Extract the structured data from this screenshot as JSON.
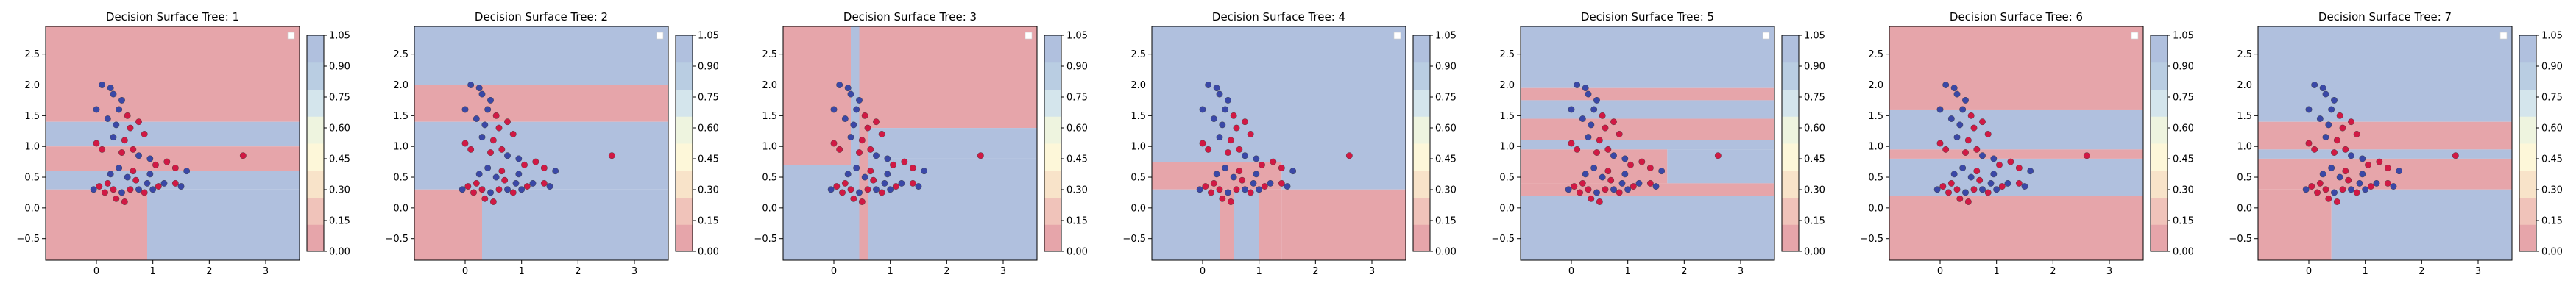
{
  "chart_data": {
    "type": "heatmap",
    "xlim": [
      -0.9,
      3.6
    ],
    "ylim": [
      -0.85,
      2.95
    ],
    "x_ticks": [
      "0",
      "1",
      "2",
      "3"
    ],
    "y_ticks": [
      "−0.5",
      "0.0",
      "0.5",
      "1.0",
      "1.5",
      "2.0",
      "2.5"
    ],
    "colorbar_ticks": [
      "0.00",
      "0.15",
      "0.30",
      "0.45",
      "0.60",
      "0.75",
      "0.90",
      "1.05"
    ],
    "colorbar_colors": [
      "#e6a5aa",
      "#f0c3ba",
      "#f8e3c9",
      "#fdf7d9",
      "#eef4df",
      "#d4e5ec",
      "#b9cde2",
      "#b0c0de"
    ],
    "colors": {
      "red": "#e6a5aa",
      "blue": "#b0c0de",
      "point_red": "#d11944",
      "point_blue": "#3a48a7"
    },
    "points": [
      [
        0.1,
        2.0,
        1
      ],
      [
        0.25,
        1.95,
        1
      ],
      [
        0.3,
        1.85,
        1
      ],
      [
        0.4,
        1.6,
        1
      ],
      [
        0.45,
        1.75,
        1
      ],
      [
        0.55,
        1.5,
        0
      ],
      [
        0.0,
        1.6,
        1
      ],
      [
        0.2,
        1.45,
        1
      ],
      [
        0.35,
        1.35,
        1
      ],
      [
        0.6,
        1.3,
        0
      ],
      [
        0.75,
        1.4,
        0
      ],
      [
        0.85,
        1.2,
        0
      ],
      [
        0.3,
        1.15,
        1
      ],
      [
        0.5,
        1.1,
        0
      ],
      [
        0.65,
        0.95,
        0
      ],
      [
        0.0,
        1.05,
        0
      ],
      [
        0.1,
        0.95,
        0
      ],
      [
        0.45,
        0.9,
        0
      ],
      [
        0.75,
        0.85,
        1
      ],
      [
        0.95,
        0.8,
        1
      ],
      [
        1.05,
        0.7,
        0
      ],
      [
        1.25,
        0.75,
        0
      ],
      [
        1.4,
        0.65,
        0
      ],
      [
        1.6,
        0.6,
        1
      ],
      [
        2.6,
        0.85,
        0
      ],
      [
        0.4,
        0.65,
        1
      ],
      [
        0.55,
        0.5,
        1
      ],
      [
        0.7,
        0.45,
        0
      ],
      [
        0.9,
        0.4,
        1
      ],
      [
        1.2,
        0.4,
        1
      ],
      [
        1.4,
        0.4,
        0
      ],
      [
        1.5,
        0.35,
        1
      ],
      [
        0.2,
        0.4,
        0
      ],
      [
        0.3,
        0.3,
        0
      ],
      [
        0.05,
        0.35,
        0
      ],
      [
        0.15,
        0.25,
        0
      ],
      [
        -0.05,
        0.3,
        1
      ],
      [
        0.35,
        0.15,
        0
      ],
      [
        0.45,
        0.25,
        1
      ],
      [
        0.6,
        0.3,
        0
      ],
      [
        0.75,
        0.3,
        1
      ],
      [
        0.85,
        0.25,
        0
      ],
      [
        1.0,
        0.3,
        1
      ],
      [
        1.1,
        0.35,
        0
      ],
      [
        0.5,
        0.1,
        0
      ],
      [
        0.25,
        0.55,
        1
      ],
      [
        0.65,
        0.6,
        0
      ],
      [
        0.95,
        0.55,
        1
      ]
    ],
    "subplots": [
      {
        "title": "Decision Surface Tree: 1",
        "regions": [
          {
            "x0": -0.9,
            "x1": 3.6,
            "y0": 1.4,
            "y1": 2.95,
            "color": "red"
          },
          {
            "x0": -0.9,
            "x1": 3.6,
            "y0": 1.0,
            "y1": 1.4,
            "color": "blue"
          },
          {
            "x0": -0.9,
            "x1": 3.6,
            "y0": 0.6,
            "y1": 1.0,
            "color": "red"
          },
          {
            "x0": -0.9,
            "x1": 3.6,
            "y0": 0.3,
            "y1": 0.6,
            "color": "blue"
          },
          {
            "x0": -0.9,
            "x1": 0.9,
            "y0": -0.85,
            "y1": 0.3,
            "color": "red"
          },
          {
            "x0": 0.9,
            "x1": 3.6,
            "y0": -0.85,
            "y1": 0.3,
            "color": "blue"
          }
        ]
      },
      {
        "title": "Decision Surface Tree: 2",
        "regions": [
          {
            "x0": -0.9,
            "x1": 3.6,
            "y0": 2.0,
            "y1": 2.95,
            "color": "blue"
          },
          {
            "x0": -0.9,
            "x1": 3.6,
            "y0": 1.4,
            "y1": 2.0,
            "color": "red"
          },
          {
            "x0": -0.9,
            "x1": 3.6,
            "y0": 0.3,
            "y1": 1.4,
            "color": "blue"
          },
          {
            "x0": -0.9,
            "x1": 0.3,
            "y0": -0.85,
            "y1": 0.3,
            "color": "red"
          },
          {
            "x0": 0.3,
            "x1": 3.6,
            "y0": -0.85,
            "y1": 0.3,
            "color": "blue"
          }
        ]
      },
      {
        "title": "Decision Surface Tree: 3",
        "regions": [
          {
            "x0": -0.9,
            "x1": 0.3,
            "y0": 0.7,
            "y1": 2.95,
            "color": "red"
          },
          {
            "x0": -0.9,
            "x1": 0.3,
            "y0": -0.85,
            "y1": 0.7,
            "color": "blue"
          },
          {
            "x0": 0.3,
            "x1": 0.45,
            "y0": -0.85,
            "y1": 2.95,
            "color": "blue"
          },
          {
            "x0": 0.45,
            "x1": 0.6,
            "y0": -0.85,
            "y1": 2.95,
            "color": "red"
          },
          {
            "x0": 0.6,
            "x1": 3.6,
            "y0": 1.3,
            "y1": 2.95,
            "color": "red"
          },
          {
            "x0": 0.6,
            "x1": 3.6,
            "y0": 0.8,
            "y1": 1.3,
            "color": "blue"
          },
          {
            "x0": 0.6,
            "x1": 3.6,
            "y0": -0.85,
            "y1": 0.8,
            "color": "blue"
          }
        ]
      },
      {
        "title": "Decision Surface Tree: 4",
        "regions": [
          {
            "x0": -0.9,
            "x1": 3.6,
            "y0": 0.75,
            "y1": 2.95,
            "color": "blue"
          },
          {
            "x0": -0.9,
            "x1": 1.4,
            "y0": 0.3,
            "y1": 0.75,
            "color": "red"
          },
          {
            "x0": 1.4,
            "x1": 3.6,
            "y0": 0.3,
            "y1": 0.75,
            "color": "blue"
          },
          {
            "x0": -0.9,
            "x1": 0.3,
            "y0": -0.85,
            "y1": 0.3,
            "color": "blue"
          },
          {
            "x0": 0.3,
            "x1": 0.55,
            "y0": -0.85,
            "y1": 0.3,
            "color": "red"
          },
          {
            "x0": 0.55,
            "x1": 1.0,
            "y0": -0.85,
            "y1": 0.3,
            "color": "blue"
          },
          {
            "x0": 1.0,
            "x1": 1.4,
            "y0": -0.85,
            "y1": 0.3,
            "color": "red"
          },
          {
            "x0": 1.4,
            "x1": 3.6,
            "y0": -0.85,
            "y1": 0.3,
            "color": "red"
          }
        ]
      },
      {
        "title": "Decision Surface Tree: 5",
        "regions": [
          {
            "x0": -0.9,
            "x1": 3.6,
            "y0": 1.95,
            "y1": 2.95,
            "color": "blue"
          },
          {
            "x0": -0.9,
            "x1": 3.6,
            "y0": 1.75,
            "y1": 1.95,
            "color": "red"
          },
          {
            "x0": -0.9,
            "x1": 3.6,
            "y0": 1.45,
            "y1": 1.75,
            "color": "blue"
          },
          {
            "x0": -0.9,
            "x1": 3.6,
            "y0": 1.1,
            "y1": 1.45,
            "color": "red"
          },
          {
            "x0": -0.9,
            "x1": 3.6,
            "y0": 0.95,
            "y1": 1.1,
            "color": "blue"
          },
          {
            "x0": -0.9,
            "x1": 1.7,
            "y0": 0.4,
            "y1": 0.95,
            "color": "red"
          },
          {
            "x0": 1.7,
            "x1": 3.6,
            "y0": 0.4,
            "y1": 0.95,
            "color": "blue"
          },
          {
            "x0": -0.9,
            "x1": 3.6,
            "y0": 0.2,
            "y1": 0.4,
            "color": "red"
          },
          {
            "x0": -0.9,
            "x1": 3.6,
            "y0": -0.85,
            "y1": 0.2,
            "color": "blue"
          }
        ]
      },
      {
        "title": "Decision Surface Tree: 6",
        "regions": [
          {
            "x0": -0.9,
            "x1": 3.6,
            "y0": 1.6,
            "y1": 2.95,
            "color": "red"
          },
          {
            "x0": -0.9,
            "x1": 3.6,
            "y0": 0.95,
            "y1": 1.6,
            "color": "blue"
          },
          {
            "x0": -0.9,
            "x1": 3.6,
            "y0": 0.8,
            "y1": 0.95,
            "color": "red"
          },
          {
            "x0": -0.9,
            "x1": 3.6,
            "y0": 0.2,
            "y1": 0.8,
            "color": "blue"
          },
          {
            "x0": -0.9,
            "x1": 3.6,
            "y0": -0.85,
            "y1": 0.2,
            "color": "red"
          }
        ]
      },
      {
        "title": "Decision Surface Tree: 7",
        "regions": [
          {
            "x0": -0.9,
            "x1": 3.6,
            "y0": 1.4,
            "y1": 2.95,
            "color": "blue"
          },
          {
            "x0": -0.9,
            "x1": 3.6,
            "y0": 0.95,
            "y1": 1.4,
            "color": "red"
          },
          {
            "x0": -0.9,
            "x1": 3.6,
            "y0": 0.8,
            "y1": 0.95,
            "color": "blue"
          },
          {
            "x0": -0.9,
            "x1": 3.6,
            "y0": 0.3,
            "y1": 0.8,
            "color": "red"
          },
          {
            "x0": -0.9,
            "x1": 0.4,
            "y0": -0.85,
            "y1": 0.3,
            "color": "red"
          },
          {
            "x0": 0.4,
            "x1": 3.6,
            "y0": -0.85,
            "y1": 0.3,
            "color": "blue"
          }
        ]
      }
    ]
  }
}
